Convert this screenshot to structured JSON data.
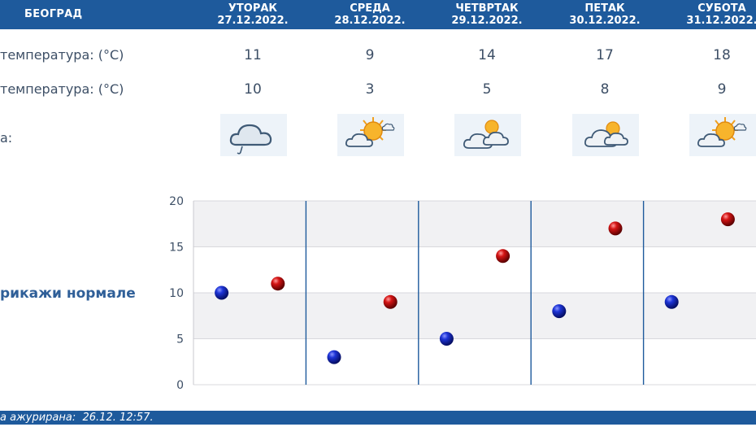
{
  "header": {
    "city": "БЕОГРАД",
    "days": [
      {
        "name": "УТОРАК",
        "date": "27.12.2022."
      },
      {
        "name": "СРЕДА",
        "date": "28.12.2022."
      },
      {
        "name": "ЧЕТВРТАК",
        "date": "29.12.2022."
      },
      {
        "name": "ПЕТАК",
        "date": "30.12.2022."
      },
      {
        "name": "СУБОТА",
        "date": "31.12.2022."
      }
    ]
  },
  "rows": {
    "max_label": "температура: (°C)",
    "min_label": "температура: (°C)",
    "weather_label": "а:",
    "max": [
      "11",
      "9",
      "14",
      "17",
      "18"
    ],
    "min": [
      "10",
      "3",
      "5",
      "8",
      "9"
    ],
    "icons": [
      "cloud-rain-icon",
      "sun-cloud-icon",
      "cloud-sun-icon",
      "cloud-sun-icon",
      "sun-cloud-icon"
    ]
  },
  "normals_link": "рикажи нормале",
  "footer": {
    "text": "а ажурирана:  26.12. 12:57."
  },
  "colors": {
    "header": "#1e5a9c",
    "min_dot": "#0b1fa8",
    "max_dot": "#c40a0a",
    "divider": "#1e5a9c"
  },
  "chart_data": {
    "type": "scatter",
    "title": "",
    "xlabel": "",
    "ylabel": "",
    "categories": [
      "27.12.2022.",
      "28.12.2022.",
      "29.12.2022.",
      "30.12.2022.",
      "31.12.2022."
    ],
    "ylim": [
      0,
      20
    ],
    "yticks": [
      "0",
      "5",
      "10",
      "15",
      "20"
    ],
    "grid": true,
    "series": [
      {
        "values": [
          10,
          3,
          5,
          8,
          9
        ]
      },
      {
        "values": [
          11,
          9,
          14,
          17,
          18
        ]
      }
    ]
  }
}
